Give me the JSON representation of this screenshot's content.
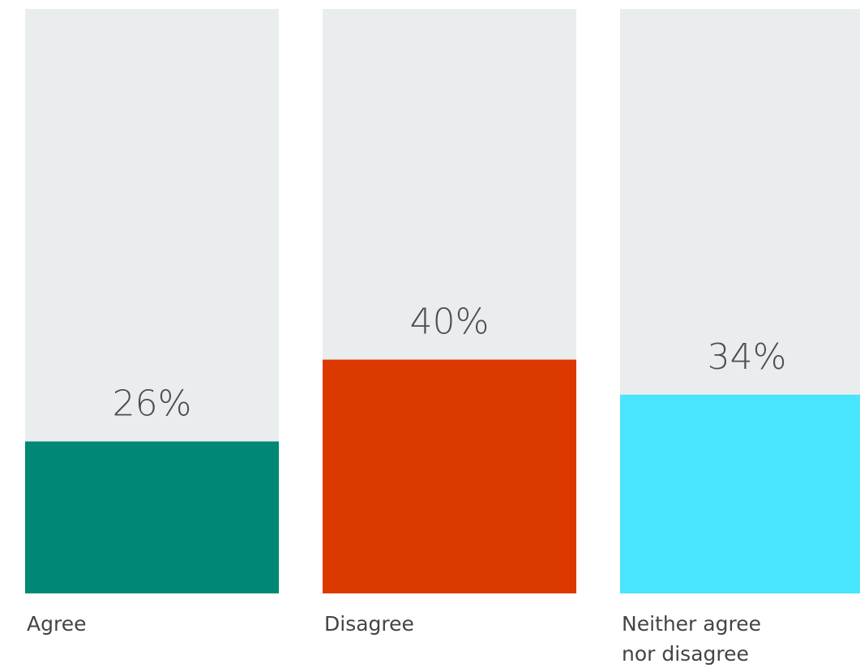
{
  "chart_data": {
    "type": "bar",
    "title": "",
    "xlabel": "",
    "ylabel": "",
    "ylim": [
      0,
      100
    ],
    "grid": false,
    "legend": "none",
    "unit": "%",
    "categories": [
      {
        "lines": [
          "Agree"
        ]
      },
      {
        "lines": [
          "Disagree"
        ]
      },
      {
        "lines": [
          "Neither agree",
          "nor disagree"
        ]
      }
    ],
    "values": [
      26,
      40,
      34
    ],
    "value_labels": [
      "26%",
      "40%",
      "34%"
    ],
    "colors": {
      "bars": [
        "#008775",
        "#dc3900",
        "#48e5fd"
      ],
      "track": "#e9edee"
    }
  }
}
